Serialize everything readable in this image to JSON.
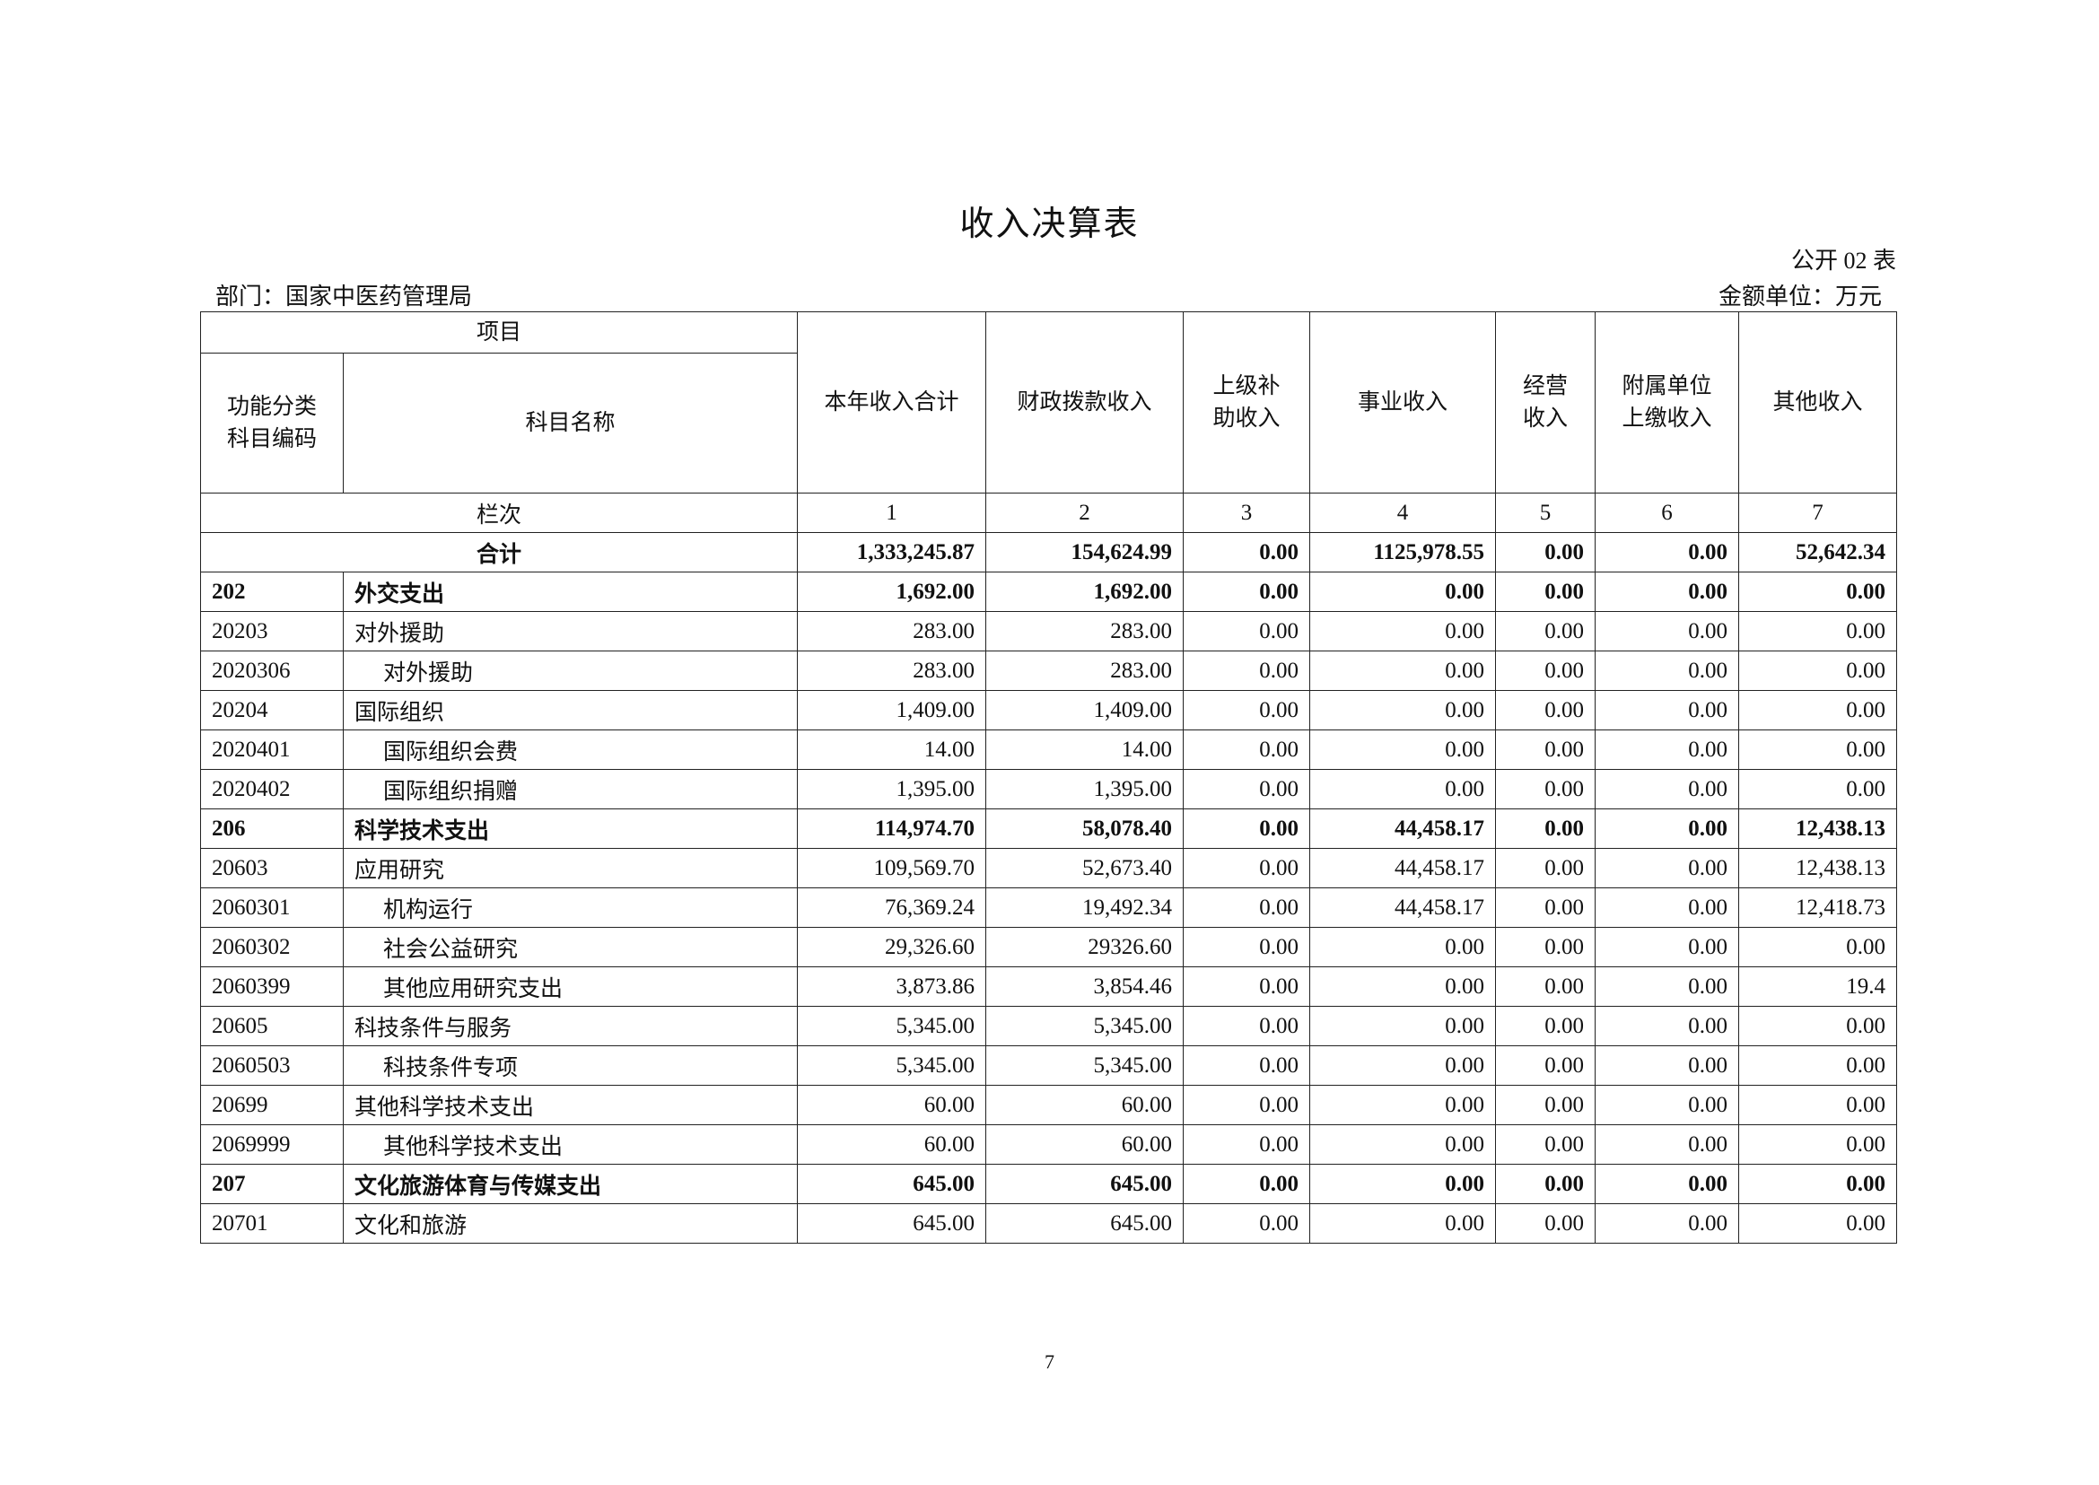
{
  "title": "收入决算表",
  "form_no": "公开 02 表",
  "department": "部门：国家中医药管理局",
  "unit": "金额单位：万元",
  "header": {
    "item": "项目",
    "code": "功能分类科目编码",
    "name": "科目名称",
    "columns": [
      "本年收入合计",
      "财政拨款收入",
      "上级补助收入",
      "事业收入",
      "经营收入",
      "附属单位上缴收入",
      "其他收入"
    ],
    "row_label": "栏次",
    "col_numbers": [
      "1",
      "2",
      "3",
      "4",
      "5",
      "6",
      "7"
    ]
  },
  "total": {
    "label": "合计",
    "values": [
      "1,333,245.87",
      "154,624.99",
      "0.00",
      "1125,978.55",
      "0.00",
      "0.00",
      "52,642.34"
    ]
  },
  "rows": [
    {
      "code": "202",
      "name": "外交支出",
      "level": 1,
      "values": [
        "1,692.00",
        "1,692.00",
        "0.00",
        "0.00",
        "0.00",
        "0.00",
        "0.00"
      ]
    },
    {
      "code": "20203",
      "name": "对外援助",
      "level": 2,
      "values": [
        "283.00",
        "283.00",
        "0.00",
        "0.00",
        "0.00",
        "0.00",
        "0.00"
      ]
    },
    {
      "code": "2020306",
      "name": "对外援助",
      "level": 3,
      "values": [
        "283.00",
        "283.00",
        "0.00",
        "0.00",
        "0.00",
        "0.00",
        "0.00"
      ]
    },
    {
      "code": "20204",
      "name": "国际组织",
      "level": 2,
      "values": [
        "1,409.00",
        "1,409.00",
        "0.00",
        "0.00",
        "0.00",
        "0.00",
        "0.00"
      ]
    },
    {
      "code": "2020401",
      "name": "国际组织会费",
      "level": 3,
      "values": [
        "14.00",
        "14.00",
        "0.00",
        "0.00",
        "0.00",
        "0.00",
        "0.00"
      ]
    },
    {
      "code": "2020402",
      "name": "国际组织捐赠",
      "level": 3,
      "values": [
        "1,395.00",
        "1,395.00",
        "0.00",
        "0.00",
        "0.00",
        "0.00",
        "0.00"
      ]
    },
    {
      "code": "206",
      "name": "科学技术支出",
      "level": 1,
      "values": [
        "114,974.70",
        "58,078.40",
        "0.00",
        "44,458.17",
        "0.00",
        "0.00",
        "12,438.13"
      ]
    },
    {
      "code": "20603",
      "name": "应用研究",
      "level": 2,
      "values": [
        "109,569.70",
        "52,673.40",
        "0.00",
        "44,458.17",
        "0.00",
        "0.00",
        "12,438.13"
      ]
    },
    {
      "code": "2060301",
      "name": "机构运行",
      "level": 3,
      "values": [
        "76,369.24",
        "19,492.34",
        "0.00",
        "44,458.17",
        "0.00",
        "0.00",
        "12,418.73"
      ]
    },
    {
      "code": "2060302",
      "name": "社会公益研究",
      "level": 3,
      "values": [
        "29,326.60",
        "29326.60",
        "0.00",
        "0.00",
        "0.00",
        "0.00",
        "0.00"
      ]
    },
    {
      "code": "2060399",
      "name": "其他应用研究支出",
      "level": 3,
      "values": [
        "3,873.86",
        "3,854.46",
        "0.00",
        "0.00",
        "0.00",
        "0.00",
        "19.4"
      ]
    },
    {
      "code": "20605",
      "name": "科技条件与服务",
      "level": 2,
      "values": [
        "5,345.00",
        "5,345.00",
        "0.00",
        "0.00",
        "0.00",
        "0.00",
        "0.00"
      ]
    },
    {
      "code": "2060503",
      "name": "科技条件专项",
      "level": 3,
      "values": [
        "5,345.00",
        "5,345.00",
        "0.00",
        "0.00",
        "0.00",
        "0.00",
        "0.00"
      ]
    },
    {
      "code": "20699",
      "name": "其他科学技术支出",
      "level": 2,
      "values": [
        "60.00",
        "60.00",
        "0.00",
        "0.00",
        "0.00",
        "0.00",
        "0.00"
      ]
    },
    {
      "code": "2069999",
      "name": "其他科学技术支出",
      "level": 3,
      "values": [
        "60.00",
        "60.00",
        "0.00",
        "0.00",
        "0.00",
        "0.00",
        "0.00"
      ]
    },
    {
      "code": "207",
      "name": "文化旅游体育与传媒支出",
      "level": 1,
      "values": [
        "645.00",
        "645.00",
        "0.00",
        "0.00",
        "0.00",
        "0.00",
        "0.00"
      ]
    },
    {
      "code": "20701",
      "name": "文化和旅游",
      "level": 2,
      "values": [
        "645.00",
        "645.00",
        "0.00",
        "0.00",
        "0.00",
        "0.00",
        "0.00"
      ]
    }
  ],
  "page_number": "7"
}
